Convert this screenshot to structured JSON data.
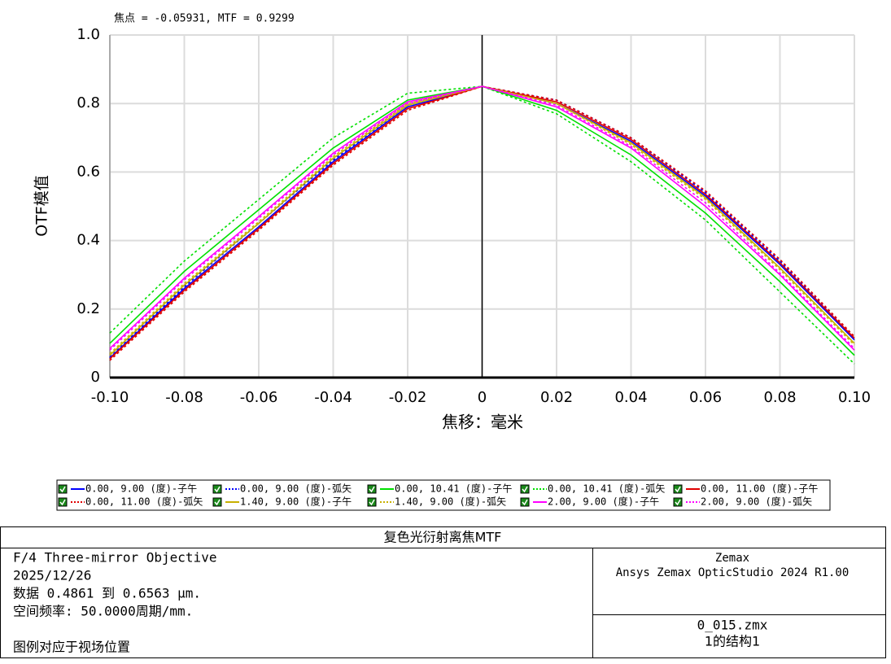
{
  "chart_data": {
    "type": "line",
    "annotation": "焦点 = -0.05931, MTF = 0.9299",
    "xlabel": "焦移：毫米",
    "ylabel": "OTF模值",
    "x": [
      -0.1,
      -0.08,
      -0.06,
      -0.04,
      -0.02,
      0,
      0.02,
      0.04,
      0.06,
      0.08,
      0.1
    ],
    "xlim": [
      -0.1,
      0.1
    ],
    "xticks": [
      {
        "value": -0.1,
        "label": "-0.10"
      },
      -0.08,
      -0.06,
      -0.04,
      -0.02,
      0,
      0.02,
      0.04,
      0.06,
      0.08,
      {
        "value": 0.1,
        "label": "0.10"
      }
    ],
    "ylim": [
      0,
      1
    ],
    "yticks": [
      0,
      0.2,
      0.4,
      0.6,
      0.8,
      {
        "value": 1,
        "label": "1.0"
      }
    ],
    "grid": true,
    "series": [
      {
        "name": "0.00, 9.00 (度)-子午",
        "color": "#0000ff",
        "style": "solid",
        "values": [
          0.057,
          0.26,
          0.44,
          0.63,
          0.79,
          0.85,
          0.8,
          0.69,
          0.53,
          0.33,
          0.11
        ]
      },
      {
        "name": "0.00, 9.00 (度)-弧矢",
        "color": "#0000ff",
        "style": "dotted",
        "values": [
          0.06,
          0.265,
          0.45,
          0.635,
          0.795,
          0.85,
          0.81,
          0.7,
          0.54,
          0.34,
          0.115
        ]
      },
      {
        "name": "0.00, 10.41 (度)-子午",
        "color": "#00e000",
        "style": "solid",
        "values": [
          0.1,
          0.31,
          0.49,
          0.67,
          0.81,
          0.85,
          0.78,
          0.65,
          0.48,
          0.28,
          0.065
        ]
      },
      {
        "name": "0.00, 10.41 (度)-弧矢",
        "color": "#00e000",
        "style": "dotted",
        "values": [
          0.13,
          0.34,
          0.52,
          0.7,
          0.83,
          0.85,
          0.77,
          0.63,
          0.46,
          0.25,
          0.04
        ]
      },
      {
        "name": "0.00, 11.00 (度)-子午",
        "color": "#e00000",
        "style": "solid",
        "values": [
          0.055,
          0.255,
          0.435,
          0.625,
          0.785,
          0.85,
          0.805,
          0.695,
          0.535,
          0.335,
          0.115
        ]
      },
      {
        "name": "0.00, 11.00 (度)-弧矢",
        "color": "#e00000",
        "style": "dotted",
        "values": [
          0.05,
          0.25,
          0.43,
          0.62,
          0.78,
          0.85,
          0.81,
          0.7,
          0.545,
          0.345,
          0.12
        ]
      },
      {
        "name": "1.40, 9.00 (度)-子午",
        "color": "#c8b000",
        "style": "solid",
        "values": [
          0.065,
          0.27,
          0.45,
          0.64,
          0.795,
          0.85,
          0.8,
          0.685,
          0.525,
          0.32,
          0.1
        ]
      },
      {
        "name": "1.40, 9.00 (度)-弧矢",
        "color": "#c8b000",
        "style": "dotted",
        "values": [
          0.07,
          0.275,
          0.455,
          0.645,
          0.8,
          0.85,
          0.8,
          0.68,
          0.52,
          0.315,
          0.095
        ]
      },
      {
        "name": "2.00, 9.00 (度)-子午",
        "color": "#ff00ff",
        "style": "solid",
        "values": [
          0.085,
          0.29,
          0.47,
          0.655,
          0.805,
          0.85,
          0.79,
          0.67,
          0.5,
          0.3,
          0.08
        ]
      },
      {
        "name": "2.00, 9.00 (度)-弧矢",
        "color": "#ff00ff",
        "style": "dotted",
        "values": [
          0.08,
          0.285,
          0.465,
          0.65,
          0.8,
          0.85,
          0.795,
          0.675,
          0.51,
          0.305,
          0.085
        ]
      }
    ]
  },
  "footer": {
    "title": "复色光衍射离焦MTF",
    "lines": [
      "F/4 Three-mirror Objective",
      "2025/12/26",
      "数据 0.4861 到 0.6563 μm.",
      "空间频率: 50.0000周期/mm."
    ],
    "note": "图例对应于视场位置",
    "company": [
      "Zemax",
      "Ansys Zemax OpticStudio 2024 R1.00"
    ],
    "file": [
      "0_015.zmx",
      "1的结构1"
    ]
  }
}
